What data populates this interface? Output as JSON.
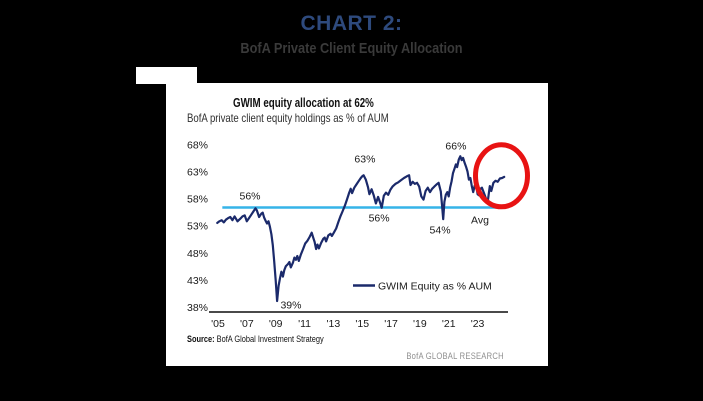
{
  "page": {
    "title": "CHART 2:",
    "subtitle": "BofA Private Client Equity Allocation",
    "background_color": "#000000",
    "title_color": "#2e4a7d",
    "subtitle_color": "#3a3a3a"
  },
  "panel": {
    "source_label": "Source:",
    "source_text": " BofA Global Investment Strategy",
    "brand": "BofA GLOBAL RESEARCH"
  },
  "chart_data": {
    "type": "line",
    "title": "GWIM equity allocation at 62%",
    "subtitle": "BofA private client equity holdings as % of AUM",
    "xlabel": "",
    "ylabel": "",
    "ylim": [
      38,
      68
    ],
    "xlim": [
      2004.8,
      2025.2
    ],
    "grid": false,
    "line_color": "#1b2a6b",
    "avg_color": "#35b4e8",
    "highlight_color": "#e81313",
    "axis_color": "#4a4a4a",
    "yticks": {
      "values": [
        68,
        63,
        58,
        53,
        48,
        43,
        38
      ],
      "labels": [
        "68%",
        "63%",
        "58%",
        "53%",
        "48%",
        "43%",
        "38%"
      ]
    },
    "xticks": {
      "values": [
        2005,
        2007,
        2009,
        2011,
        2013,
        2015,
        2017,
        2019,
        2021,
        2023
      ],
      "labels": [
        "'05",
        "'07",
        "'09",
        "'11",
        "'13",
        "'15",
        "'17",
        "'19",
        "'21",
        "'23"
      ]
    },
    "legend": {
      "label": "GWIM Equity as % AUM",
      "position": "bottom-center"
    },
    "average_line": {
      "value": 56.45,
      "x_start": 2005.3,
      "x_end": 2024.7
    },
    "highlight_circle": {
      "x": 2024.66,
      "y": 62.3,
      "note": "red ellipse around latest reading"
    },
    "annotations": [
      {
        "label": "56%",
        "x": 2007.22,
        "y": 58.6
      },
      {
        "label": "63%",
        "x": 2015.19,
        "y": 65.4
      },
      {
        "label": "66%",
        "x": 2021.5,
        "y": 67.8
      },
      {
        "label": "56%",
        "x": 2016.17,
        "y": 54.5
      },
      {
        "label": "54%",
        "x": 2020.4,
        "y": 52.3
      },
      {
        "label": "39%",
        "x": 2010.06,
        "y": 38.5
      },
      {
        "label": "Avg",
        "x": 2023.17,
        "y": 54.1
      }
    ],
    "series": [
      {
        "name": "GWIM Equity as % AUM",
        "color": "#1b2a6b",
        "points": [
          [
            2004.95,
            53.6
          ],
          [
            2005.1,
            53.9
          ],
          [
            2005.25,
            54.1
          ],
          [
            2005.4,
            53.7
          ],
          [
            2005.55,
            54.2
          ],
          [
            2005.7,
            54.5
          ],
          [
            2005.85,
            54.7
          ],
          [
            2006.0,
            54.1
          ],
          [
            2006.15,
            54.8
          ],
          [
            2006.35,
            53.9
          ],
          [
            2006.55,
            54.4
          ],
          [
            2006.7,
            54.8
          ],
          [
            2006.85,
            55.0
          ],
          [
            2007.0,
            53.9
          ],
          [
            2007.15,
            54.5
          ],
          [
            2007.3,
            55.1
          ],
          [
            2007.45,
            55.7
          ],
          [
            2007.6,
            56.3
          ],
          [
            2007.7,
            55.9
          ],
          [
            2007.85,
            54.7
          ],
          [
            2008.0,
            55.3
          ],
          [
            2008.1,
            55.5
          ],
          [
            2008.2,
            54.6
          ],
          [
            2008.3,
            54.0
          ],
          [
            2008.4,
            53.5
          ],
          [
            2008.5,
            53.9
          ],
          [
            2008.6,
            52.9
          ],
          [
            2008.7,
            51.5
          ],
          [
            2008.8,
            49.5
          ],
          [
            2008.9,
            46.5
          ],
          [
            2009.0,
            43.0
          ],
          [
            2009.1,
            39.2
          ],
          [
            2009.2,
            42.0
          ],
          [
            2009.3,
            43.4
          ],
          [
            2009.4,
            44.6
          ],
          [
            2009.5,
            43.7
          ],
          [
            2009.6,
            44.9
          ],
          [
            2009.7,
            45.6
          ],
          [
            2009.85,
            46.0
          ],
          [
            2009.95,
            46.4
          ],
          [
            2010.05,
            45.4
          ],
          [
            2010.2,
            46.3
          ],
          [
            2010.3,
            47.2
          ],
          [
            2010.4,
            46.8
          ],
          [
            2010.5,
            47.5
          ],
          [
            2010.6,
            46.6
          ],
          [
            2010.75,
            47.8
          ],
          [
            2010.9,
            48.8
          ],
          [
            2011.05,
            49.8
          ],
          [
            2011.2,
            50.3
          ],
          [
            2011.35,
            51.0
          ],
          [
            2011.5,
            51.8
          ],
          [
            2011.6,
            50.9
          ],
          [
            2011.7,
            50.1
          ],
          [
            2011.8,
            48.8
          ],
          [
            2011.9,
            49.6
          ],
          [
            2012.0,
            48.9
          ],
          [
            2012.15,
            49.9
          ],
          [
            2012.3,
            50.7
          ],
          [
            2012.4,
            50.9
          ],
          [
            2012.5,
            50.2
          ],
          [
            2012.65,
            51.3
          ],
          [
            2012.8,
            51.6
          ],
          [
            2012.9,
            51.2
          ],
          [
            2013.05,
            51.9
          ],
          [
            2013.2,
            52.6
          ],
          [
            2013.35,
            53.8
          ],
          [
            2013.5,
            54.9
          ],
          [
            2013.65,
            55.8
          ],
          [
            2013.8,
            56.8
          ],
          [
            2013.95,
            58.0
          ],
          [
            2014.1,
            59.2
          ],
          [
            2014.2,
            59.9
          ],
          [
            2014.3,
            59.1
          ],
          [
            2014.45,
            60.1
          ],
          [
            2014.6,
            60.7
          ],
          [
            2014.75,
            61.3
          ],
          [
            2014.9,
            61.9
          ],
          [
            2015.0,
            62.2
          ],
          [
            2015.1,
            62.4
          ],
          [
            2015.25,
            61.6
          ],
          [
            2015.4,
            60.2
          ],
          [
            2015.5,
            58.9
          ],
          [
            2015.65,
            59.8
          ],
          [
            2015.8,
            58.7
          ],
          [
            2015.95,
            57.2
          ],
          [
            2016.1,
            58.4
          ],
          [
            2016.25,
            57.3
          ],
          [
            2016.35,
            56.4
          ],
          [
            2016.5,
            58.6
          ],
          [
            2016.65,
            59.2
          ],
          [
            2016.8,
            58.8
          ],
          [
            2016.95,
            59.7
          ],
          [
            2017.1,
            60.3
          ],
          [
            2017.3,
            60.8
          ],
          [
            2017.5,
            61.1
          ],
          [
            2017.7,
            61.5
          ],
          [
            2017.9,
            61.9
          ],
          [
            2018.1,
            62.2
          ],
          [
            2018.25,
            62.4
          ],
          [
            2018.35,
            60.6
          ],
          [
            2018.5,
            61.2
          ],
          [
            2018.65,
            60.8
          ],
          [
            2018.8,
            61.0
          ],
          [
            2018.95,
            60.3
          ],
          [
            2019.1,
            58.5
          ],
          [
            2019.25,
            57.9
          ],
          [
            2019.4,
            59.5
          ],
          [
            2019.55,
            60.1
          ],
          [
            2019.7,
            59.3
          ],
          [
            2019.85,
            59.9
          ],
          [
            2020.0,
            60.3
          ],
          [
            2020.15,
            60.7
          ],
          [
            2020.3,
            61.0
          ],
          [
            2020.45,
            59.4
          ],
          [
            2020.55,
            56.5
          ],
          [
            2020.62,
            54.3
          ],
          [
            2020.7,
            57.5
          ],
          [
            2020.8,
            58.8
          ],
          [
            2020.9,
            59.3
          ],
          [
            2021.0,
            58.5
          ],
          [
            2021.1,
            60.2
          ],
          [
            2021.2,
            61.3
          ],
          [
            2021.3,
            62.8
          ],
          [
            2021.4,
            63.6
          ],
          [
            2021.5,
            64.4
          ],
          [
            2021.58,
            63.9
          ],
          [
            2021.7,
            65.3
          ],
          [
            2021.8,
            65.9
          ],
          [
            2021.9,
            65.2
          ],
          [
            2022.0,
            65.6
          ],
          [
            2022.1,
            64.7
          ],
          [
            2022.2,
            64.0
          ],
          [
            2022.3,
            63.1
          ],
          [
            2022.4,
            61.6
          ],
          [
            2022.5,
            61.9
          ],
          [
            2022.6,
            60.4
          ],
          [
            2022.7,
            59.3
          ],
          [
            2022.8,
            60.5
          ],
          [
            2022.9,
            60.8
          ],
          [
            2023.0,
            58.9
          ],
          [
            2023.1,
            58.7
          ],
          [
            2023.2,
            59.9
          ],
          [
            2023.3,
            60.1
          ],
          [
            2023.45,
            59.1
          ],
          [
            2023.6,
            58.0
          ],
          [
            2023.7,
            57.5
          ],
          [
            2023.85,
            60.4
          ],
          [
            2023.95,
            59.5
          ],
          [
            2024.1,
            61.0
          ],
          [
            2024.25,
            61.4
          ],
          [
            2024.4,
            61.2
          ],
          [
            2024.55,
            61.8
          ],
          [
            2024.7,
            61.9
          ],
          [
            2024.85,
            62.1
          ]
        ]
      }
    ]
  }
}
